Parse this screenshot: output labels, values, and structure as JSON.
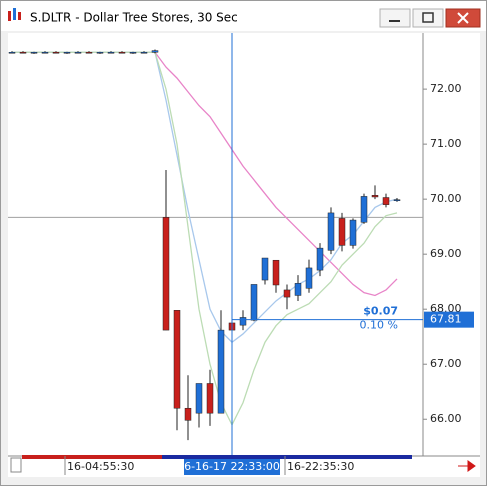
{
  "chart_data": {
    "type": "candlestick",
    "title": "S.DLTR - Dollar Tree Stores, 30 Sec",
    "categories": [
      null,
      null,
      null,
      null,
      null,
      "16-04:55:30",
      null,
      null,
      null,
      null,
      null,
      null,
      null,
      null,
      null,
      null,
      null,
      null,
      null,
      null,
      "6-16-17 22:33:00",
      null,
      null,
      null,
      null,
      "16-22:35:30",
      null,
      null,
      null,
      null,
      null,
      null,
      null,
      null,
      null,
      null
    ],
    "open": [
      72.67,
      72.67,
      72.66,
      72.67,
      72.67,
      72.66,
      72.67,
      72.67,
      72.66,
      72.67,
      72.67,
      72.66,
      72.67,
      72.67,
      69.67,
      67.98,
      66.2,
      66.11,
      66.65,
      66.11,
      67.75,
      67.71,
      67.8,
      68.53,
      68.89,
      68.35,
      68.25,
      68.38,
      68.71,
      69.07,
      69.65,
      69.16,
      69.58,
      70.07,
      70.03,
      69.98
    ],
    "high": [
      72.69,
      72.69,
      72.68,
      72.69,
      72.69,
      72.68,
      72.69,
      72.69,
      72.68,
      72.69,
      72.69,
      72.68,
      72.69,
      72.72,
      70.53,
      67.98,
      66.8,
      66.65,
      66.9,
      67.98,
      67.75,
      67.98,
      68.45,
      68.93,
      68.89,
      68.45,
      68.62,
      68.9,
      69.2,
      69.85,
      69.75,
      69.65,
      70.1,
      70.25,
      70.1,
      70.02
    ],
    "low": [
      72.65,
      72.65,
      72.64,
      72.65,
      72.65,
      72.64,
      72.65,
      72.65,
      72.64,
      72.65,
      72.65,
      72.64,
      72.65,
      72.65,
      67.62,
      65.8,
      65.62,
      65.85,
      65.88,
      66.11,
      67.55,
      67.62,
      67.78,
      68.45,
      68.3,
      68.0,
      68.15,
      68.3,
      68.6,
      69.0,
      69.05,
      69.1,
      69.55,
      70.0,
      69.85,
      69.95
    ],
    "close": [
      72.67,
      72.66,
      72.67,
      72.67,
      72.66,
      72.67,
      72.67,
      72.66,
      72.67,
      72.67,
      72.66,
      72.67,
      72.67,
      72.7,
      67.62,
      66.2,
      65.98,
      66.65,
      66.11,
      67.62,
      67.62,
      67.85,
      68.45,
      68.93,
      68.44,
      68.22,
      68.47,
      68.75,
      69.11,
      69.75,
      69.16,
      69.62,
      70.05,
      70.04,
      69.9,
      69.99
    ],
    "up_color": "#1f6fd6",
    "down_color": "#c8201c",
    "lines": [
      {
        "color": "#e884c8",
        "values": [
          72.67,
          72.67,
          72.67,
          72.67,
          72.67,
          72.67,
          72.67,
          72.67,
          72.67,
          72.67,
          72.67,
          72.67,
          72.67,
          72.67,
          72.4,
          72.2,
          71.95,
          71.7,
          71.5,
          71.2,
          70.9,
          70.6,
          70.35,
          70.1,
          69.85,
          69.65,
          69.45,
          69.25,
          69.05,
          68.85,
          68.65,
          68.45,
          68.3,
          68.25,
          68.35,
          68.55
        ]
      },
      {
        "color": "#a8c8ec",
        "values": [
          72.67,
          72.67,
          72.67,
          72.67,
          72.67,
          72.67,
          72.67,
          72.67,
          72.67,
          72.67,
          72.67,
          72.67,
          72.67,
          72.67,
          71.8,
          70.8,
          69.8,
          68.9,
          68.0,
          67.6,
          67.4,
          67.55,
          67.75,
          67.95,
          68.15,
          68.3,
          68.45,
          68.55,
          68.7,
          68.9,
          69.2,
          69.35,
          69.6,
          69.85,
          69.95,
          70.0
        ]
      },
      {
        "color": "#bcdcb4",
        "values": [
          72.67,
          72.67,
          72.67,
          72.67,
          72.67,
          72.67,
          72.67,
          72.67,
          72.67,
          72.67,
          72.67,
          72.67,
          72.67,
          72.67,
          72.0,
          71.0,
          69.5,
          68.0,
          67.0,
          66.3,
          65.9,
          66.3,
          66.9,
          67.4,
          67.7,
          67.9,
          68.0,
          68.1,
          68.3,
          68.5,
          68.8,
          69.0,
          69.2,
          69.5,
          69.7,
          69.75
        ]
      }
    ],
    "ylim": [
      65.35,
      73.02
    ],
    "yticks": [
      {
        "value": 66,
        "label": "66.00"
      },
      {
        "value": 67,
        "label": "67.00"
      },
      {
        "value": 68,
        "label": "68.00"
      },
      {
        "value": 69,
        "label": "69.00"
      },
      {
        "value": 70,
        "label": "70.00"
      },
      {
        "value": 71,
        "label": "71.00"
      },
      {
        "value": 72,
        "label": "72.00"
      }
    ],
    "hline": 69.67,
    "crosshair_index": 20,
    "crosshair_price": 67.81,
    "annotations": [
      "$0.07",
      "0.10 %"
    ]
  }
}
